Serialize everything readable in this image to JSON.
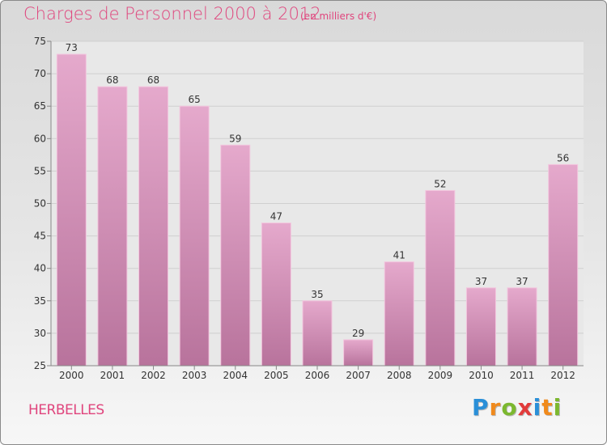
{
  "header": {
    "title": "Charges de Personnel 2000 à 2012",
    "subtitle": "(en milliers d'€)"
  },
  "footer": {
    "town": "HERBELLES",
    "logo_letters": [
      "P",
      "r",
      "o",
      "x",
      "i",
      "t",
      "i"
    ],
    "logo_colors": [
      "#2a8fd8",
      "#f08a1c",
      "#7cb82f",
      "#e23b3b",
      "#2a8fd8",
      "#f08a1c",
      "#7cb82f"
    ]
  },
  "chart_data": {
    "type": "bar",
    "title": "Charges de Personnel 2000 à 2012",
    "subtitle": "(en milliers d'€)",
    "categories": [
      "2000",
      "2001",
      "2002",
      "2003",
      "2004",
      "2005",
      "2006",
      "2007",
      "2008",
      "2009",
      "2010",
      "2011",
      "2012"
    ],
    "values": [
      73,
      68,
      68,
      65,
      59,
      47,
      35,
      29,
      41,
      52,
      37,
      37,
      56
    ],
    "ylim": [
      25,
      75
    ],
    "yticks": [
      25,
      30,
      35,
      40,
      45,
      50,
      55,
      60,
      65,
      70,
      75
    ],
    "grid": true,
    "bar_color": "#e5a9cc",
    "bar_color_dark": "#b8739c",
    "label_color": "#333333"
  }
}
